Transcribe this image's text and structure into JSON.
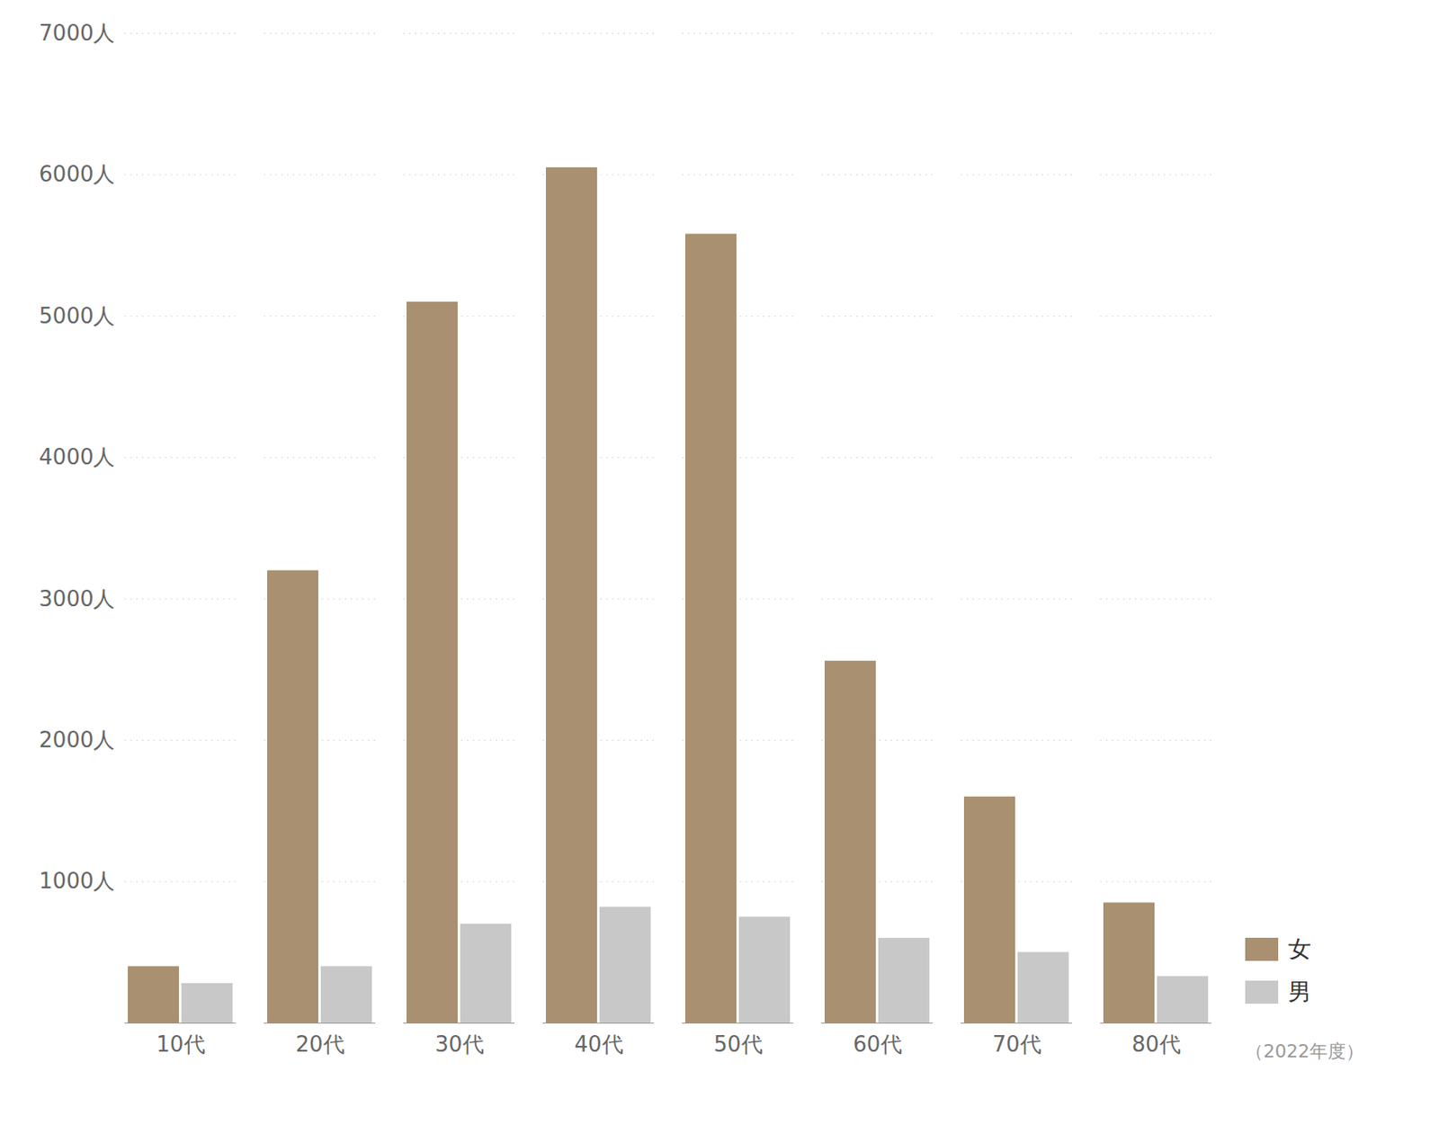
{
  "chart_data": {
    "type": "bar",
    "categories": [
      "10代",
      "20代",
      "30代",
      "40代",
      "50代",
      "60代",
      "70代",
      "80代"
    ],
    "series": [
      {
        "name": "女",
        "color": "#a89070",
        "values": [
          400,
          3200,
          5100,
          6050,
          5580,
          2560,
          1600,
          850
        ]
      },
      {
        "name": "男",
        "color": "#c8c8c8",
        "values": [
          280,
          400,
          700,
          820,
          750,
          600,
          500,
          330
        ]
      }
    ],
    "ylim": [
      0,
      7000
    ],
    "yticks": [
      {
        "value": 1000,
        "label": "1000人"
      },
      {
        "value": 2000,
        "label": "2000人"
      },
      {
        "value": 3000,
        "label": "3000人"
      },
      {
        "value": 4000,
        "label": "4000人"
      },
      {
        "value": 5000,
        "label": "5000人"
      },
      {
        "value": 6000,
        "label": "6000人"
      },
      {
        "value": 7000,
        "label": "7000人"
      }
    ],
    "grid": true,
    "legend": "lower right",
    "annotations": [
      "（2022年度）"
    ]
  }
}
